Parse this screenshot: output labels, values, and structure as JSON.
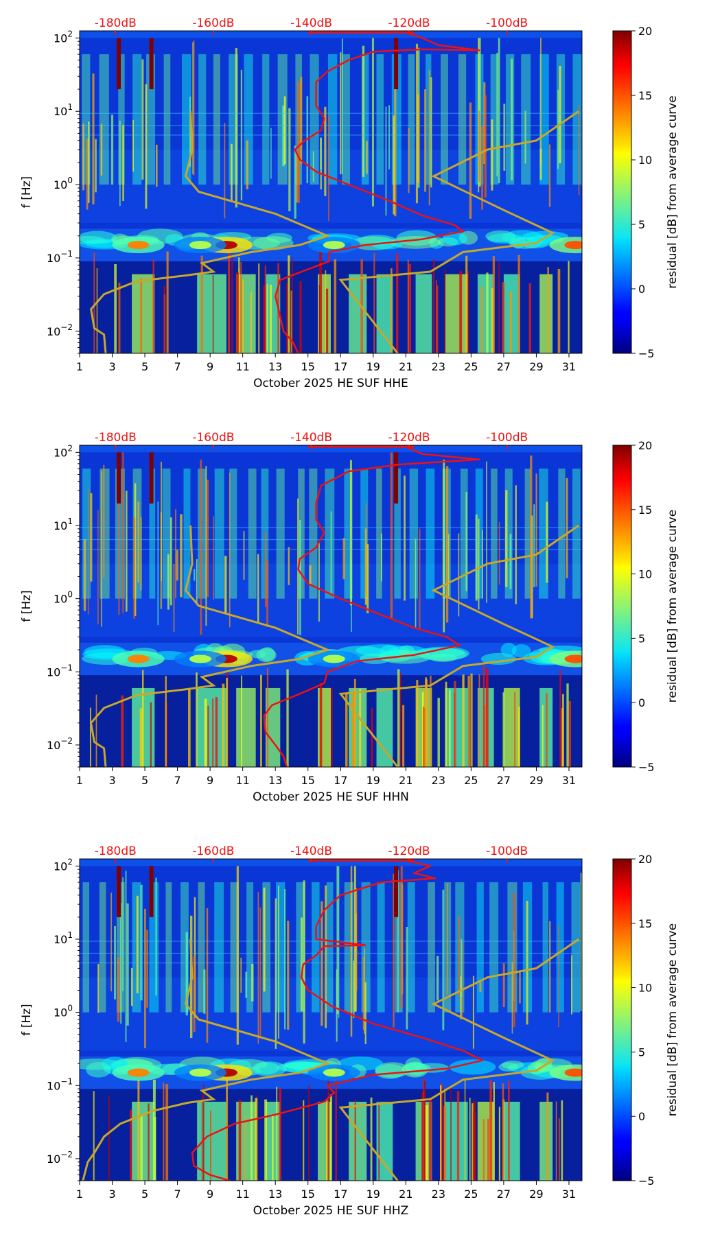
{
  "chart_data": [
    {
      "type": "heatmap",
      "title": "",
      "xlabel": "October 2025 HE SUF  HHE",
      "ylabel": "f [Hz]",
      "x_tick_labels": [
        "1",
        "3",
        "5",
        "7",
        "9",
        "11",
        "13",
        "15",
        "17",
        "19",
        "21",
        "23",
        "25",
        "27",
        "29",
        "31"
      ],
      "x_range": [
        1,
        31.8
      ],
      "y_tick_labels": [
        "10",
        "10",
        "10",
        "10",
        "10"
      ],
      "y_tick_exponents": [
        "2",
        "1",
        "0",
        "−1",
        "−2"
      ],
      "y_tick_values": [
        100,
        10,
        1,
        0.1,
        0.01
      ],
      "y_range": [
        0.005,
        125
      ],
      "top_axis_labels": [
        "-180dB",
        "-160dB",
        "-140dB",
        "-120dB",
        "-100dB"
      ],
      "top_axis_positions_day": [
        3.2,
        9.2,
        15.2,
        21.2,
        27.2
      ],
      "colorbar": {
        "label": "residual [dB] from average curve",
        "ticks": [
          "20",
          "15",
          "10",
          "5",
          "0",
          "−5"
        ],
        "range": [
          -5,
          20
        ]
      },
      "series": [
        {
          "name": "average PSD (red)",
          "color": "#ee1111",
          "points": [
            [
              14.4,
              0.005
            ],
            [
              14.1,
              0.007
            ],
            [
              13.5,
              0.01
            ],
            [
              13.2,
              0.02
            ],
            [
              13.0,
              0.03
            ],
            [
              13.3,
              0.05
            ],
            [
              15.0,
              0.07
            ],
            [
              16.3,
              0.09
            ],
            [
              16.3,
              0.12
            ],
            [
              18.5,
              0.15
            ],
            [
              22.0,
              0.18
            ],
            [
              24.5,
              0.23
            ],
            [
              24.0,
              0.28
            ],
            [
              22.0,
              0.38
            ],
            [
              20.0,
              0.6
            ],
            [
              17.5,
              1.0
            ],
            [
              15.5,
              1.5
            ],
            [
              14.5,
              2.2
            ],
            [
              14.2,
              3.0
            ],
            [
              14.8,
              4.0
            ],
            [
              15.8,
              5.5
            ],
            [
              16.0,
              8.0
            ],
            [
              15.5,
              12.0
            ],
            [
              15.5,
              18.0
            ],
            [
              15.5,
              25.0
            ],
            [
              16.2,
              35.0
            ],
            [
              17.5,
              50.0
            ],
            [
              19.0,
              65.0
            ],
            [
              22.0,
              70.0
            ],
            [
              25.5,
              68.0
            ],
            [
              23.0,
              80.0
            ],
            [
              22.0,
              100.0
            ],
            [
              21.0,
              120.0
            ]
          ]
        },
        {
          "name": "noise model (gold)",
          "color": "#c8a82a",
          "points_low": [
            [
              2.6,
              0.005
            ],
            [
              2.5,
              0.009
            ],
            [
              1.9,
              0.011
            ],
            [
              1.7,
              0.02
            ],
            [
              2.5,
              0.032
            ],
            [
              4.5,
              0.048
            ],
            [
              7.6,
              0.058
            ],
            [
              9.2,
              0.065
            ],
            [
              8.5,
              0.085
            ],
            [
              11.5,
              0.12
            ],
            [
              14.5,
              0.15
            ],
            [
              16.2,
              0.2
            ],
            [
              13.0,
              0.4
            ],
            [
              8.3,
              0.8
            ],
            [
              7.5,
              1.3
            ],
            [
              7.9,
              3.0
            ],
            [
              7.8,
              10.0
            ]
          ],
          "points_high": [
            [
              20.5,
              0.005
            ],
            [
              17.0,
              0.05
            ],
            [
              22.5,
              0.065
            ],
            [
              24.5,
              0.12
            ],
            [
              29.0,
              0.16
            ],
            [
              30.0,
              0.22
            ],
            [
              27.0,
              0.45
            ],
            [
              22.7,
              1.3
            ],
            [
              26.0,
              3.0
            ],
            [
              29.0,
              4.0
            ],
            [
              31.6,
              10.0
            ]
          ]
        }
      ]
    },
    {
      "type": "heatmap",
      "title": "",
      "xlabel": "October 2025 HE SUF  HHN",
      "ylabel": "f [Hz]",
      "x_tick_labels": [
        "1",
        "3",
        "5",
        "7",
        "9",
        "11",
        "13",
        "15",
        "17",
        "19",
        "21",
        "23",
        "25",
        "27",
        "29",
        "31"
      ],
      "x_range": [
        1,
        31.8
      ],
      "y_tick_labels": [
        "10",
        "10",
        "10",
        "10",
        "10"
      ],
      "y_tick_exponents": [
        "2",
        "1",
        "0",
        "−1",
        "−2"
      ],
      "y_tick_values": [
        100,
        10,
        1,
        0.1,
        0.01
      ],
      "y_range": [
        0.005,
        125
      ],
      "top_axis_labels": [
        "-180dB",
        "-160dB",
        "-140dB",
        "-120dB",
        "-100dB"
      ],
      "top_axis_positions_day": [
        3.2,
        9.2,
        15.2,
        21.2,
        27.2
      ],
      "colorbar": {
        "label": "residual [dB] from average curve",
        "ticks": [
          "20",
          "15",
          "10",
          "5",
          "0",
          "−5"
        ],
        "range": [
          -5,
          20
        ]
      },
      "series": [
        {
          "name": "average PSD (red)",
          "color": "#ee1111",
          "points": [
            [
              13.7,
              0.005
            ],
            [
              13.5,
              0.007
            ],
            [
              13.0,
              0.01
            ],
            [
              12.4,
              0.015
            ],
            [
              12.3,
              0.025
            ],
            [
              12.8,
              0.035
            ],
            [
              14.5,
              0.05
            ],
            [
              16.0,
              0.07
            ],
            [
              16.2,
              0.1
            ],
            [
              18.0,
              0.14
            ],
            [
              21.5,
              0.17
            ],
            [
              24.3,
              0.23
            ],
            [
              23.5,
              0.3
            ],
            [
              21.5,
              0.4
            ],
            [
              19.5,
              0.6
            ],
            [
              17.0,
              1.0
            ],
            [
              15.0,
              1.6
            ],
            [
              14.4,
              2.5
            ],
            [
              14.5,
              3.5
            ],
            [
              15.5,
              5.0
            ],
            [
              16.0,
              8.0
            ],
            [
              15.5,
              12.0
            ],
            [
              15.5,
              20.0
            ],
            [
              15.8,
              35.0
            ],
            [
              17.5,
              55.0
            ],
            [
              20.5,
              68.0
            ],
            [
              25.5,
              80.0
            ],
            [
              22.0,
              95.0
            ],
            [
              21.0,
              120.0
            ]
          ]
        },
        {
          "name": "noise model (gold)",
          "color": "#c8a82a",
          "points_low": [
            [
              2.6,
              0.005
            ],
            [
              2.5,
              0.009
            ],
            [
              1.9,
              0.011
            ],
            [
              1.7,
              0.02
            ],
            [
              2.5,
              0.032
            ],
            [
              4.5,
              0.048
            ],
            [
              7.6,
              0.058
            ],
            [
              9.2,
              0.065
            ],
            [
              8.5,
              0.085
            ],
            [
              11.5,
              0.12
            ],
            [
              14.5,
              0.15
            ],
            [
              16.2,
              0.2
            ],
            [
              13.0,
              0.4
            ],
            [
              8.3,
              0.8
            ],
            [
              7.5,
              1.3
            ],
            [
              7.9,
              3.0
            ],
            [
              7.8,
              10.0
            ]
          ],
          "points_high": [
            [
              20.5,
              0.005
            ],
            [
              17.0,
              0.05
            ],
            [
              22.5,
              0.065
            ],
            [
              24.5,
              0.12
            ],
            [
              29.0,
              0.16
            ],
            [
              30.0,
              0.22
            ],
            [
              27.0,
              0.45
            ],
            [
              22.7,
              1.3
            ],
            [
              26.0,
              3.0
            ],
            [
              29.0,
              4.0
            ],
            [
              31.6,
              10.0
            ]
          ]
        }
      ]
    },
    {
      "type": "heatmap",
      "title": "",
      "xlabel": "October 2025 HE SUF  HHZ",
      "ylabel": "f [Hz]",
      "x_tick_labels": [
        "1",
        "3",
        "5",
        "7",
        "9",
        "11",
        "13",
        "15",
        "17",
        "19",
        "21",
        "23",
        "25",
        "27",
        "29",
        "31"
      ],
      "x_range": [
        1,
        31.8
      ],
      "y_tick_labels": [
        "10",
        "10",
        "10",
        "10",
        "10"
      ],
      "y_tick_exponents": [
        "2",
        "1",
        "0",
        "−1",
        "−2"
      ],
      "y_tick_values": [
        100,
        10,
        1,
        0.1,
        0.01
      ],
      "y_range": [
        0.005,
        125
      ],
      "top_axis_labels": [
        "-180dB",
        "-160dB",
        "-140dB",
        "-120dB",
        "-100dB"
      ],
      "top_axis_positions_day": [
        3.2,
        9.2,
        15.2,
        21.2,
        27.2
      ],
      "colorbar": {
        "label": "residual [dB] from average curve",
        "ticks": [
          "20",
          "15",
          "10",
          "5",
          "0",
          "−5"
        ],
        "range": [
          -5,
          20
        ]
      },
      "series": [
        {
          "name": "average PSD (red)",
          "color": "#ee1111",
          "points": [
            [
              10.2,
              0.005
            ],
            [
              9.0,
              0.006
            ],
            [
              8.0,
              0.008
            ],
            [
              7.9,
              0.012
            ],
            [
              8.8,
              0.02
            ],
            [
              10.5,
              0.03
            ],
            [
              13.0,
              0.04
            ],
            [
              16.0,
              0.06
            ],
            [
              16.6,
              0.08
            ],
            [
              16.2,
              0.1
            ],
            [
              19.0,
              0.14
            ],
            [
              23.5,
              0.17
            ],
            [
              25.7,
              0.22
            ],
            [
              24.5,
              0.3
            ],
            [
              22.0,
              0.45
            ],
            [
              19.0,
              0.7
            ],
            [
              16.5,
              1.2
            ],
            [
              15.0,
              2.0
            ],
            [
              14.6,
              3.0
            ],
            [
              14.7,
              4.5
            ],
            [
              15.5,
              6.0
            ],
            [
              16.0,
              8.0
            ],
            [
              18.5,
              8.3
            ],
            [
              15.5,
              10.0
            ],
            [
              15.5,
              15.0
            ],
            [
              16.0,
              25.0
            ],
            [
              17.0,
              40.0
            ],
            [
              19.5,
              60.0
            ],
            [
              22.8,
              68.0
            ],
            [
              21.5,
              80.0
            ],
            [
              22.5,
              100.0
            ],
            [
              21.0,
              120.0
            ]
          ]
        },
        {
          "name": "noise model (gold)",
          "color": "#c8a82a",
          "points_low": [
            [
              1.2,
              0.005
            ],
            [
              1.5,
              0.009
            ],
            [
              1.9,
              0.012
            ],
            [
              2.5,
              0.02
            ],
            [
              3.5,
              0.03
            ],
            [
              5.5,
              0.045
            ],
            [
              7.6,
              0.058
            ],
            [
              9.2,
              0.065
            ],
            [
              8.5,
              0.085
            ],
            [
              11.5,
              0.12
            ],
            [
              14.5,
              0.15
            ],
            [
              16.2,
              0.2
            ],
            [
              13.0,
              0.4
            ],
            [
              8.3,
              0.8
            ],
            [
              7.5,
              1.3
            ],
            [
              7.9,
              3.0
            ],
            [
              7.8,
              10.0
            ]
          ],
          "points_high": [
            [
              20.5,
              0.005
            ],
            [
              17.0,
              0.05
            ],
            [
              22.5,
              0.065
            ],
            [
              24.5,
              0.12
            ],
            [
              29.0,
              0.16
            ],
            [
              30.0,
              0.22
            ],
            [
              27.0,
              0.45
            ],
            [
              22.7,
              1.3
            ],
            [
              26.0,
              3.0
            ],
            [
              29.0,
              4.0
            ],
            [
              31.6,
              10.0
            ]
          ]
        }
      ]
    }
  ]
}
